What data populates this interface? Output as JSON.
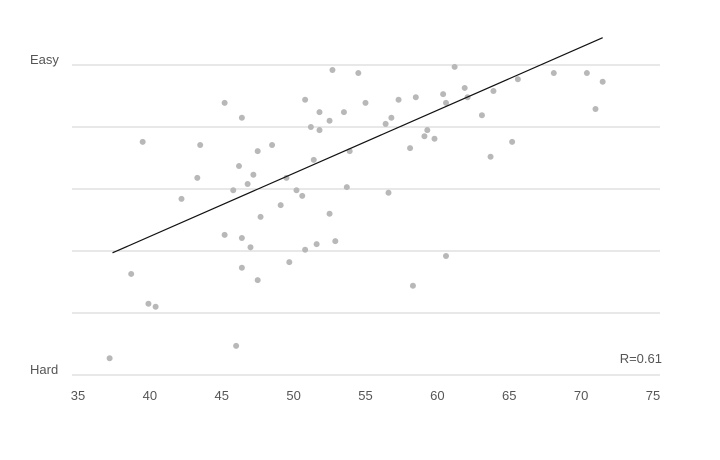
{
  "chart_data": {
    "type": "scatter",
    "annotation": "R=0.61",
    "xlim": [
      35,
      75
    ],
    "xticks": [
      35,
      40,
      45,
      50,
      55,
      60,
      65,
      70,
      75
    ],
    "ylim": [
      0,
      5.5
    ],
    "yticks": [
      {
        "value": 0,
        "label": "Hard"
      },
      {
        "value": 1,
        "label": null
      },
      {
        "value": 2,
        "label": null
      },
      {
        "value": 3,
        "label": null
      },
      {
        "value": 4,
        "label": null
      },
      {
        "value": 5,
        "label": "Easy"
      }
    ],
    "grid": true,
    "color": "#b8b8b8",
    "trendline_color": "#111111",
    "x": [
      37.2,
      38.7,
      39.9,
      40.4,
      39.5,
      42.2,
      43.3,
      43.5,
      45.2,
      45.2,
      45.8,
      46.2,
      46.4,
      46.4,
      46.4,
      46.8,
      47.0,
      47.2,
      47.5,
      47.5,
      47.7,
      46.0,
      48.5,
      49.1,
      49.5,
      49.7,
      50.2,
      50.6,
      50.8,
      50.8,
      51.2,
      51.4,
      51.6,
      51.8,
      51.8,
      52.5,
      52.5,
      52.7,
      52.9,
      53.5,
      53.7,
      53.9,
      54.5,
      55.0,
      56.4,
      56.6,
      56.8,
      57.3,
      58.1,
      58.3,
      58.5,
      59.1,
      59.3,
      59.8,
      60.4,
      60.6,
      60.6,
      61.2,
      61.9,
      62.1,
      63.1,
      63.7,
      63.9,
      65.2,
      65.6,
      68.1,
      70.4,
      71.0,
      71.5
    ],
    "values": [
      0.27,
      1.63,
      1.15,
      1.1,
      3.76,
      2.84,
      3.18,
      3.71,
      4.39,
      2.26,
      2.98,
      3.37,
      4.15,
      2.21,
      1.73,
      3.08,
      2.06,
      3.23,
      3.61,
      1.53,
      2.55,
      0.47,
      3.71,
      2.74,
      3.18,
      1.82,
      2.98,
      2.89,
      2.02,
      4.44,
      4.0,
      3.47,
      2.11,
      4.24,
      3.95,
      2.6,
      4.1,
      4.92,
      2.16,
      4.24,
      3.03,
      3.61,
      4.87,
      4.39,
      4.05,
      2.94,
      4.15,
      4.44,
      3.66,
      1.44,
      4.48,
      3.85,
      3.95,
      3.81,
      4.53,
      4.39,
      1.92,
      4.97,
      4.63,
      4.48,
      4.19,
      3.52,
      4.58,
      3.76,
      4.77,
      4.87,
      4.87,
      4.29,
      4.73
    ],
    "trendline": {
      "x": [
        37.4,
        71.5
      ],
      "y": [
        1.97,
        5.44
      ]
    }
  }
}
